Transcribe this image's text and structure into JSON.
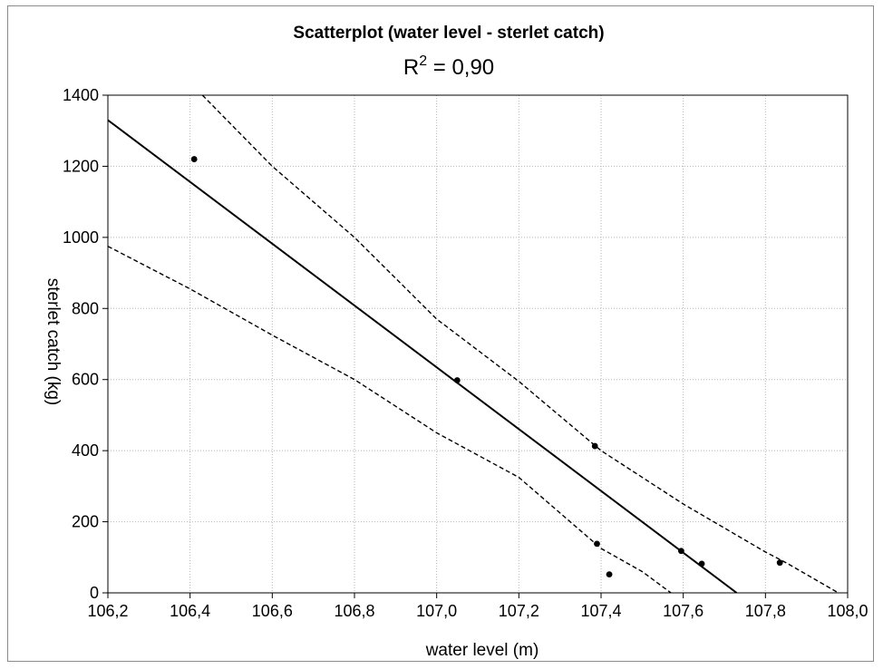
{
  "chart_data": {
    "type": "scatter",
    "title": "Scatterplot (water level - sterlet catch)",
    "subtitle": {
      "prefix": "R",
      "superscript": "2",
      "suffix": " = 0,90"
    },
    "xlabel": "water level (m)",
    "ylabel": "sterlet catch (kg)",
    "xlim": [
      106.2,
      108.0
    ],
    "ylim": [
      0,
      1400
    ],
    "x_ticks": [
      106.2,
      106.4,
      106.6,
      106.8,
      107.0,
      107.2,
      107.4,
      107.6,
      107.8,
      108.0
    ],
    "x_tick_labels": [
      "106,2",
      "106,4",
      "106,6",
      "106,8",
      "107,0",
      "107,2",
      "107,4",
      "107,6",
      "107,8",
      "108,0"
    ],
    "y_ticks": [
      0,
      200,
      400,
      600,
      800,
      1000,
      1200,
      1400
    ],
    "y_tick_labels": [
      "0",
      "200",
      "400",
      "600",
      "800",
      "1000",
      "1200",
      "1400"
    ],
    "grid": true,
    "points": [
      {
        "x": 106.41,
        "y": 1220
      },
      {
        "x": 107.05,
        "y": 598
      },
      {
        "x": 107.385,
        "y": 413
      },
      {
        "x": 107.39,
        "y": 138
      },
      {
        "x": 107.42,
        "y": 52
      },
      {
        "x": 107.595,
        "y": 118
      },
      {
        "x": 107.645,
        "y": 82
      },
      {
        "x": 107.835,
        "y": 85
      }
    ],
    "regression_line": {
      "x": [
        106.2,
        107.73
      ],
      "y": [
        1330,
        0
      ]
    },
    "upper_confidence": {
      "x": [
        106.43,
        106.6,
        106.8,
        107.0,
        107.2,
        107.4,
        107.6,
        107.8,
        107.85,
        108.0
      ],
      "y": [
        1400,
        1200,
        1000,
        770,
        595,
        400,
        250,
        115,
        85,
        -15
      ]
    },
    "lower_confidence": {
      "x": [
        106.2,
        106.4,
        106.6,
        106.8,
        107.0,
        107.2,
        107.4,
        107.5,
        107.57
      ],
      "y": [
        975,
        855,
        725,
        600,
        450,
        325,
        125,
        60,
        0
      ]
    },
    "colors": {
      "frame_border": "#8a8a8a",
      "grid": "#b5b5b5",
      "line": "#000000",
      "points": "#000000"
    }
  }
}
